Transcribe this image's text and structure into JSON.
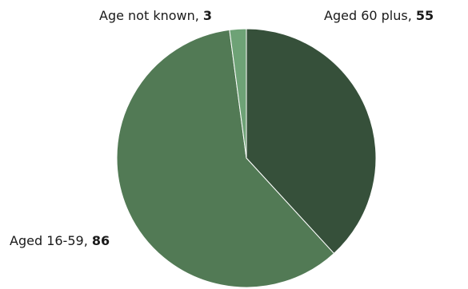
{
  "chart_data": {
    "type": "pie",
    "title": "",
    "slices": [
      {
        "label": "Aged 60 plus",
        "value": 55,
        "color": "#36503a"
      },
      {
        "label": "Aged 16-59",
        "value": 86,
        "color": "#527a55"
      },
      {
        "label": "Age not known",
        "value": 3,
        "color": "#6ea276"
      }
    ],
    "legend": "none",
    "data_labels": "outside"
  }
}
